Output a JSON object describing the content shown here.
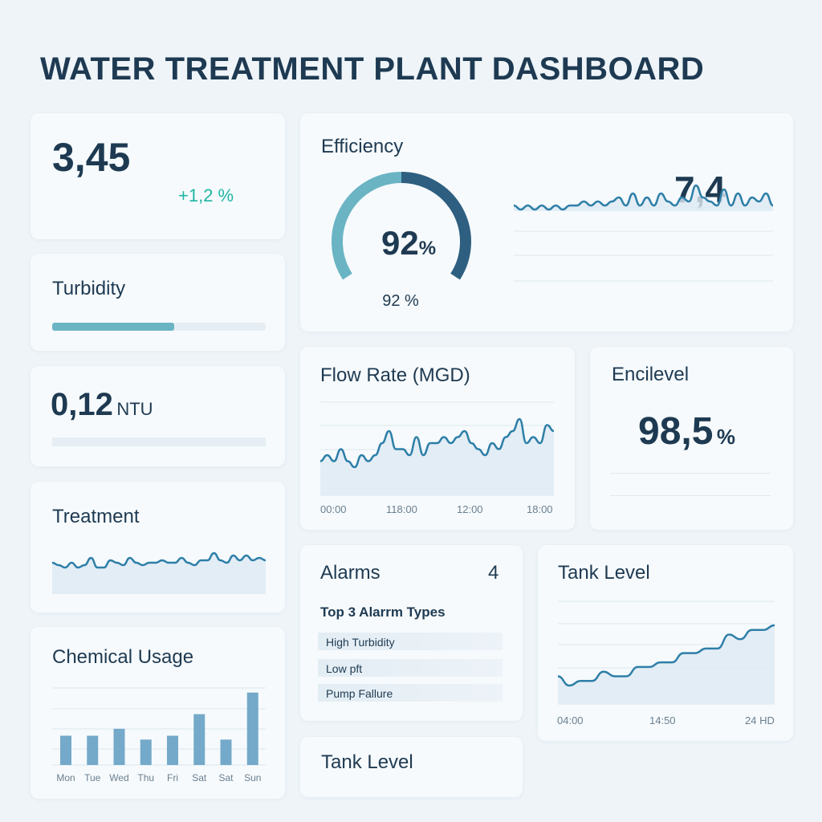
{
  "title": "WATER TREATMENT PLANT DASHBOARD",
  "colors": {
    "text": "#1e3a52",
    "accent": "#2e7fa8",
    "teal": "#1fb5a5",
    "gauge_light": "#6ab4c4",
    "gauge_dark": "#2e5f80"
  },
  "kpi": {
    "value": "3,45",
    "change": "+1,2 %"
  },
  "turbidity": {
    "title": "Turbidity",
    "progress": 0.57
  },
  "ntu": {
    "value": "0,12",
    "unit": "NTU",
    "progress": 0
  },
  "treatment": {
    "title": "Treatment",
    "series": [
      5,
      4,
      3,
      5,
      3,
      4,
      7,
      3,
      3,
      6,
      5,
      4,
      7,
      5,
      4,
      5,
      5,
      6,
      5,
      5,
      7,
      5,
      4,
      6,
      6,
      9,
      6,
      5,
      8,
      6,
      8,
      6,
      7,
      6
    ]
  },
  "chemical": {
    "title": "Chemical Usage",
    "chart_data": {
      "type": "bar",
      "categories": [
        "Mon",
        "Tue",
        "Wed",
        "Thu",
        "Fri",
        "Sat",
        "Sat",
        "Sun"
      ],
      "values": [
        38,
        38,
        47,
        33,
        38,
        66,
        33,
        94
      ],
      "ylim": [
        0,
        100
      ],
      "grid": true
    }
  },
  "efficiency": {
    "title": "Efficiency",
    "gauge_value": "92",
    "gauge_unit": "%",
    "gauge_fraction": 0.92,
    "sub_value": "92 %",
    "value": "7,4",
    "series": [
      4,
      3,
      4,
      3,
      4,
      3,
      4,
      3,
      4,
      4,
      5,
      4,
      5,
      4,
      5,
      6,
      4,
      7,
      4,
      6,
      4,
      7,
      5,
      4,
      6,
      5,
      9,
      6,
      5,
      4,
      8,
      4,
      7,
      4,
      6,
      5,
      7,
      4
    ]
  },
  "flow": {
    "title": "Flow Rate (MGD)",
    "x_labels": [
      "00:00",
      "118:00",
      "12:00",
      "18:00"
    ],
    "series": [
      4,
      5,
      4,
      6,
      4,
      3,
      5,
      4,
      5,
      7,
      9,
      6,
      6,
      5,
      8,
      5,
      7,
      7,
      8,
      7,
      8,
      9,
      7,
      6,
      5,
      7,
      6,
      8,
      9,
      11,
      7,
      8,
      7,
      10,
      9
    ]
  },
  "encilevel": {
    "title": "Encilevel",
    "value": "98,5",
    "unit": "%"
  },
  "alarms": {
    "title": "Alarms",
    "count": "4",
    "subtitle": "Top 3 Alarrm Types",
    "items": [
      "High Turbidity",
      "Low pft",
      "Pump Fallure"
    ]
  },
  "tank": {
    "title": "Tank Level",
    "x_labels": [
      "04:00",
      "14:50",
      "24 HD"
    ],
    "series": [
      4,
      3,
      3.5,
      3.5,
      4.5,
      4,
      4,
      5,
      5,
      5.5,
      5.5,
      6.5,
      6.5,
      7,
      7,
      8.5,
      8,
      9,
      9,
      9.5
    ]
  },
  "tank2": {
    "title": "Tank Level"
  }
}
